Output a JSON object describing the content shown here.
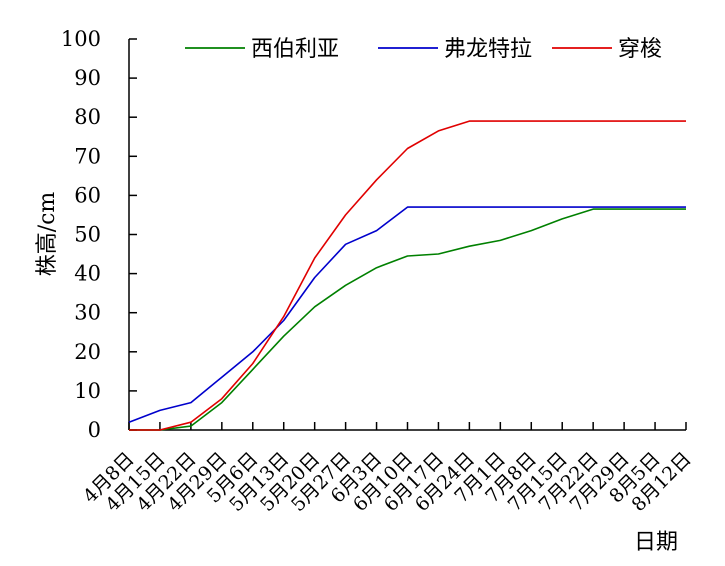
{
  "chart_data": {
    "type": "line",
    "title": "",
    "xlabel": "日期",
    "ylabel": "株高/cm",
    "ylim": [
      0,
      100
    ],
    "yticks": [
      0,
      10,
      20,
      30,
      40,
      50,
      60,
      70,
      80,
      90,
      100
    ],
    "categories": [
      "4月8日",
      "4月15日",
      "4月22日",
      "4月29日",
      "5月6日",
      "5月13日",
      "5月20日",
      "5月27日",
      "6月3日",
      "6月10日",
      "6月17日",
      "6月24日",
      "7月1日",
      "7月8日",
      "7月15日",
      "7月22日",
      "7月29日",
      "8月5日",
      "8月12日"
    ],
    "legend_position": "top",
    "grid": false,
    "series": [
      {
        "name": "西伯利亚",
        "color": "#008000",
        "values": [
          0,
          0,
          1,
          7,
          15.5,
          24,
          31.5,
          37,
          41.5,
          44.5,
          45,
          47,
          48.5,
          51,
          54,
          56.5,
          56.5,
          56.5,
          56.5
        ]
      },
      {
        "name": "弗龙特拉",
        "color": "#0000cc",
        "values": [
          2,
          5,
          7,
          13.5,
          20,
          28,
          39,
          47.5,
          51,
          57,
          57,
          57,
          57,
          57,
          57,
          57,
          57,
          57,
          57
        ]
      },
      {
        "name": "穿梭",
        "color": "#e00000",
        "values": [
          0,
          0,
          2,
          8,
          17,
          29,
          44,
          55,
          64,
          72,
          76.5,
          79,
          79,
          79,
          79,
          79,
          79,
          79,
          79
        ]
      }
    ]
  }
}
